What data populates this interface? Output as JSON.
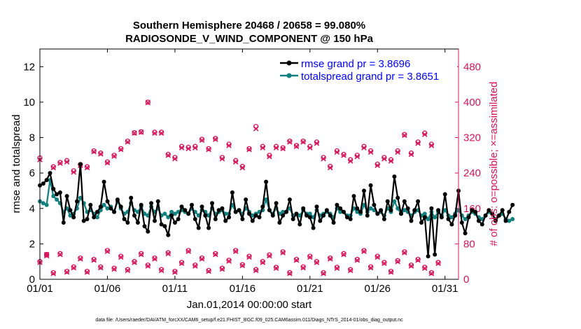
{
  "chart_data": {
    "type": "line",
    "title_line1": "Southern Hemisphere 20468 / 20658 = 99.080%",
    "title_line2": "RADIOSONDE_V_WIND_COMPONENT @ 150 hPa",
    "xlabel": "Jan.01,2014 00:00:00 start",
    "ylabel_left": "rmse and totalspread",
    "ylabel_right": "# of obs: o=possible; ×=assimilated",
    "footnote": "data file: /Users/raeder/DAI/ATM_forcXX/CAM6_setup/f.e21.FHIST_BGC.f09_025.CAM6assim.011/Diags_NTrS_2014-01/obs_diag_output.nc",
    "x_tick_labels": [
      "01/01",
      "01/06",
      "01/11",
      "01/16",
      "01/21",
      "01/26",
      "01/31"
    ],
    "x_tick_days": [
      1,
      6,
      11,
      16,
      21,
      26,
      31
    ],
    "xlim": [
      1,
      32
    ],
    "ylim_left": [
      0,
      13
    ],
    "y_ticks_left": [
      "0",
      "2",
      "4",
      "6",
      "8",
      "10",
      "12"
    ],
    "ylim_right": [
      0,
      520
    ],
    "y_ticks_right": [
      "0",
      "80",
      "160",
      "240",
      "320",
      "400",
      "480"
    ],
    "legend": {
      "rmse_label": "rmse grand pr = 3.8696",
      "spread_label": "totalspread grand pr = 3.8651"
    },
    "colors": {
      "rmse": "#000000",
      "spread": "#138080",
      "obs": "#d6145a"
    },
    "x_day_start": 1,
    "x_step_days": 0.25,
    "series": [
      {
        "name": "rmse",
        "values": [
          5.3,
          5.4,
          5.6,
          6.0,
          5.1,
          4.8,
          4.9,
          3.2,
          4.7,
          3.9,
          3.5,
          4.4,
          6.5,
          3.3,
          3.4,
          4.2,
          3.5,
          3.8,
          4.1,
          5.5,
          4.4,
          4.0,
          3.8,
          4.5,
          4.1,
          3.4,
          3.2,
          4.6,
          3.6,
          3.2,
          4.2,
          3.0,
          2.7,
          4.3,
          3.3,
          4.4,
          3.1,
          3.0,
          2.5,
          3.6,
          3.2,
          3.4,
          4.1,
          3.9,
          3.7,
          4.2,
          3.4,
          2.9,
          4.1,
          3.6,
          2.9,
          4.3,
          3.4,
          3.9,
          4.0,
          3.3,
          3.5,
          4.9,
          3.8,
          3.9,
          3.4,
          4.5,
          3.7,
          3.3,
          3.6,
          3.5,
          4.1,
          5.5,
          3.9,
          3.6,
          4.3,
          3.2,
          3.6,
          3.8,
          4.5,
          3.4,
          3.7,
          3.1,
          4.0,
          3.6,
          3.5,
          2.9,
          4.1,
          3.3,
          3.6,
          3.9,
          3.6,
          3.2,
          4.2,
          4.0,
          3.8,
          3.5,
          3.4,
          4.7,
          4.0,
          3.8,
          5.0,
          3.6,
          5.3,
          4.2,
          3.7,
          3.9,
          3.4,
          4.4,
          3.9,
          5.8,
          4.6,
          3.7,
          4.4,
          4.0,
          3.3,
          3.9,
          4.4,
          3.2,
          3.5,
          1.3,
          4.0,
          1.4,
          3.9,
          3.5,
          4.8,
          3.4,
          3.1,
          3.6,
          5.0,
          3.2,
          2.6,
          3.5,
          3.9,
          3.8,
          3.3,
          3.1,
          3.6,
          3.9,
          3.7,
          3.3,
          3.6,
          3.9,
          3.3,
          3.8,
          4.2
        ]
      },
      {
        "name": "totalspread",
        "values": [
          4.4,
          4.3,
          4.2,
          5.6,
          4.7,
          4.5,
          4.3,
          3.8,
          4.0,
          3.6,
          3.7,
          4.0,
          4.6,
          4.3,
          3.8,
          3.9,
          3.7,
          3.5,
          3.9,
          4.2,
          4.0,
          4.1,
          3.8,
          4.4,
          4.0,
          3.7,
          3.8,
          4.3,
          3.9,
          3.8,
          4.1,
          3.7,
          3.6,
          4.1,
          3.8,
          4.0,
          3.6,
          3.7,
          3.5,
          3.8,
          3.7,
          3.8,
          3.9,
          3.8,
          3.7,
          4.0,
          3.8,
          3.6,
          3.9,
          3.8,
          3.6,
          4.0,
          3.7,
          3.8,
          3.9,
          3.7,
          3.7,
          4.2,
          3.8,
          3.9,
          3.7,
          4.0,
          3.8,
          3.6,
          3.7,
          3.8,
          3.9,
          4.5,
          3.9,
          3.7,
          4.0,
          3.7,
          3.8,
          3.8,
          4.0,
          3.6,
          3.7,
          3.6,
          3.9,
          3.7,
          3.7,
          3.5,
          3.9,
          3.6,
          3.7,
          3.8,
          3.7,
          3.5,
          4.0,
          3.8,
          3.8,
          3.6,
          3.6,
          4.0,
          3.8,
          3.7,
          4.2,
          3.8,
          4.0,
          3.9,
          3.7,
          3.8,
          3.6,
          4.0,
          3.8,
          4.4,
          4.0,
          3.7,
          3.9,
          3.8,
          3.6,
          3.8,
          3.9,
          3.6,
          3.7,
          3.4,
          3.8,
          3.5,
          3.8,
          3.6,
          3.9,
          3.6,
          3.5,
          3.7,
          3.9,
          3.6,
          3.4,
          3.6,
          3.8,
          3.7,
          3.5,
          3.4,
          3.6,
          3.8,
          3.7,
          3.4,
          3.6,
          3.7,
          3.4,
          3.3,
          3.4
        ]
      }
    ],
    "obs_start_day": 1,
    "obs_step_days": 0.5,
    "obs_possible_high": [
      274,
      56,
      254,
      264,
      268,
      245,
      259,
      254,
      290,
      285,
      265,
      280,
      295,
      312,
      331,
      333,
      400,
      332,
      332,
      282,
      275,
      300,
      298,
      300,
      316,
      295,
      318,
      275,
      305,
      268,
      255,
      295,
      345,
      300,
      280,
      300,
      297,
      312,
      302,
      312,
      300,
      310,
      275,
      255,
      290,
      282,
      270,
      280,
      300,
      290,
      260,
      275,
      270,
      290,
      327,
      285,
      310,
      330,
      305
    ],
    "obs_assim_high": [
      270,
      56,
      252,
      262,
      265,
      242,
      257,
      252,
      288,
      283,
      263,
      278,
      293,
      310,
      330,
      332,
      399,
      330,
      330,
      280,
      272,
      297,
      295,
      297,
      314,
      293,
      316,
      272,
      302,
      265,
      252,
      293,
      340,
      297,
      277,
      297,
      295,
      310,
      300,
      310,
      297,
      307,
      272,
      252,
      287,
      280,
      267,
      277,
      297,
      287,
      257,
      272,
      267,
      287,
      325,
      282,
      307,
      327,
      302
    ],
    "obs_possible_low": [
      40,
      55,
      15,
      58,
      18,
      28,
      48,
      18,
      45,
      28,
      65,
      25,
      52,
      22,
      40,
      58,
      32,
      48,
      22,
      60,
      18,
      38,
      65,
      32,
      48,
      20,
      58,
      25,
      43,
      65,
      33,
      52,
      22,
      40,
      55,
      27,
      62,
      15,
      45,
      28,
      52,
      40,
      15,
      48,
      27,
      58,
      22,
      45,
      65,
      28,
      52,
      38,
      18,
      42,
      62,
      32,
      45,
      27,
      15,
      38
    ],
    "obs_assim_low": [
      38,
      53,
      13,
      56,
      16,
      26,
      46,
      16,
      43,
      26,
      63,
      23,
      50,
      20,
      38,
      56,
      30,
      46,
      20,
      58,
      16,
      36,
      63,
      30,
      46,
      18,
      56,
      23,
      41,
      63,
      31,
      50,
      20,
      38,
      53,
      25,
      60,
      13,
      43,
      26,
      50,
      38,
      13,
      46,
      25,
      56,
      20,
      43,
      63,
      26,
      50,
      36,
      16,
      40,
      60,
      30,
      43,
      25,
      13,
      36
    ]
  }
}
